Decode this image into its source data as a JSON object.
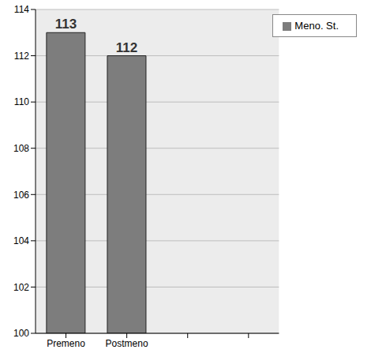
{
  "chart_data": {
    "type": "bar",
    "categories": [
      "Premeno",
      "Postmeno",
      null,
      null
    ],
    "series": [
      {
        "name": "Meno. St.",
        "color": "#7d7d7d",
        "values": [
          113,
          112,
          null,
          null
        ]
      }
    ],
    "ylim": [
      100,
      114
    ],
    "yticks": [
      100,
      102,
      104,
      106,
      108,
      110,
      112,
      114
    ],
    "grid": true,
    "legend": "upper right",
    "data_labels": true
  }
}
